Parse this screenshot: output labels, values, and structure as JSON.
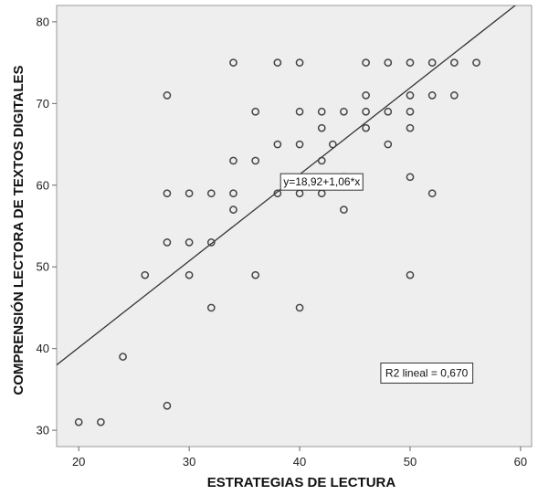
{
  "chart_data": {
    "type": "scatter",
    "title": "",
    "xlabel": "ESTRATEGIAS DE LECTURA",
    "ylabel": "COMPRENSIÓN LECTORA DE TEXTOS DIGITALES",
    "xlim": [
      18,
      61
    ],
    "ylim": [
      28,
      82
    ],
    "xticks": [
      20,
      30,
      40,
      50,
      60
    ],
    "yticks": [
      30,
      40,
      50,
      60,
      70,
      80
    ],
    "grid": false,
    "background": "#eeeeee",
    "marker_color": "#444444",
    "line_color": "#333333",
    "fit_line": {
      "intercept": 18.92,
      "slope": 1.06,
      "equation_label": "y=18,92+1,06*x",
      "equation_at": [
        42,
        60.4
      ]
    },
    "r2_label": "R2 lineal = 0,670",
    "r2_at": [
      51.5,
      37
    ],
    "points": [
      [
        20,
        31
      ],
      [
        22,
        31
      ],
      [
        24,
        39
      ],
      [
        26,
        49
      ],
      [
        28,
        71
      ],
      [
        28,
        59
      ],
      [
        28,
        53
      ],
      [
        28,
        33
      ],
      [
        30,
        59
      ],
      [
        30,
        53
      ],
      [
        30,
        49
      ],
      [
        32,
        59
      ],
      [
        32,
        53
      ],
      [
        32,
        45
      ],
      [
        34,
        75
      ],
      [
        34,
        63
      ],
      [
        34,
        59
      ],
      [
        34,
        57
      ],
      [
        36,
        69
      ],
      [
        36,
        63
      ],
      [
        36,
        49
      ],
      [
        38,
        75
      ],
      [
        38,
        65
      ],
      [
        38,
        59
      ],
      [
        40,
        75
      ],
      [
        40,
        69
      ],
      [
        40,
        65
      ],
      [
        40,
        59
      ],
      [
        40,
        45
      ],
      [
        42,
        69
      ],
      [
        42,
        67
      ],
      [
        42,
        63
      ],
      [
        42,
        59
      ],
      [
        43,
        65
      ],
      [
        44,
        69
      ],
      [
        44,
        61
      ],
      [
        44,
        57
      ],
      [
        46,
        75
      ],
      [
        46,
        71
      ],
      [
        46,
        69
      ],
      [
        46,
        67
      ],
      [
        48,
        75
      ],
      [
        48,
        69
      ],
      [
        48,
        65
      ],
      [
        50,
        75
      ],
      [
        50,
        71
      ],
      [
        50,
        69
      ],
      [
        50,
        67
      ],
      [
        50,
        61
      ],
      [
        50,
        49
      ],
      [
        52,
        75
      ],
      [
        52,
        71
      ],
      [
        52,
        59
      ],
      [
        54,
        75
      ],
      [
        54,
        71
      ],
      [
        56,
        75
      ]
    ]
  }
}
